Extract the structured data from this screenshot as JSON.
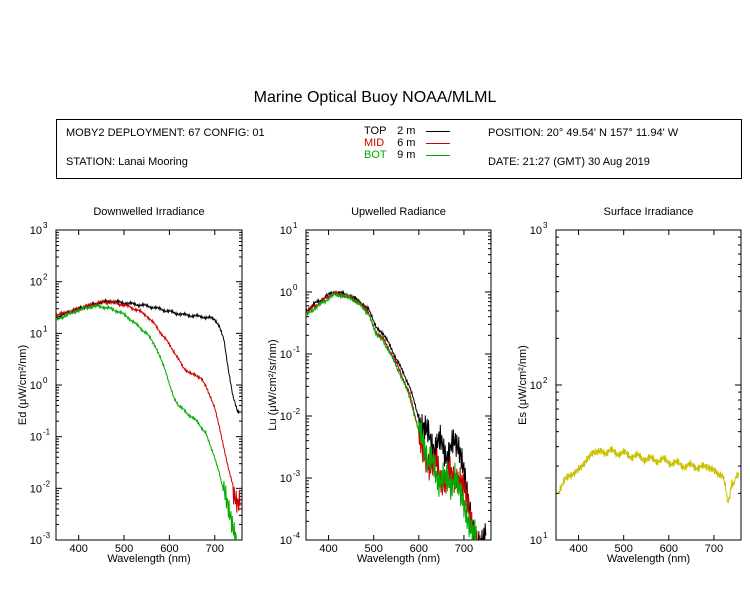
{
  "title": "Marine Optical Buoy NOAA/MLML",
  "info": {
    "deployment": "MOBY2 DEPLOYMENT: 67 CONFIG: 01",
    "station": "STATION: Lanai Mooring",
    "position": "POSITION: 20° 49.54' N   157° 11.94' W",
    "date": "DATE: 21:27 (GMT) 30 Aug 2019"
  },
  "depths": [
    {
      "name": "TOP",
      "value": "2",
      "unit": "m",
      "color": "#000000"
    },
    {
      "name": "MID",
      "value": "6",
      "unit": "m",
      "color": "#cc0000"
    },
    {
      "name": "BOT",
      "value": "9",
      "unit": "m",
      "color": "#00aa00"
    }
  ],
  "chart_data": [
    {
      "type": "line",
      "title": "Downwelled Irradiance",
      "xlabel": "Wavelength (nm)",
      "ylabel": "Ed  (μW/cm²/nm)",
      "xlim": [
        350,
        760
      ],
      "ylim": [
        0.001,
        1000
      ],
      "yscale": "log",
      "x_ticks": [
        400,
        500,
        600,
        700
      ],
      "y_ticks": [
        {
          "value": 0.001,
          "base": "10",
          "exp": "-3"
        },
        {
          "value": 0.01,
          "base": "10",
          "exp": "-2"
        },
        {
          "value": 0.1,
          "base": "10",
          "exp": "-1"
        },
        {
          "value": 1,
          "base": "10",
          "exp": "0"
        },
        {
          "value": 10,
          "base": "10",
          "exp": "1"
        },
        {
          "value": 100,
          "base": "10",
          "exp": "2"
        },
        {
          "value": 1000,
          "base": "10",
          "exp": "3"
        }
      ],
      "series": [
        {
          "name": "TOP",
          "color": "#000000",
          "x": [
            350,
            370,
            390,
            410,
            430,
            450,
            470,
            490,
            510,
            530,
            550,
            570,
            590,
            610,
            630,
            650,
            670,
            690,
            700,
            710,
            720,
            730,
            740,
            750,
            757
          ],
          "y": [
            20,
            24,
            28,
            32,
            36,
            40,
            42,
            40,
            38,
            36,
            34,
            31,
            28,
            25,
            23,
            22,
            21,
            20,
            18,
            14,
            8,
            2,
            0.6,
            0.3,
            0.28
          ]
        },
        {
          "name": "MID",
          "color": "#cc0000",
          "x": [
            350,
            370,
            390,
            410,
            430,
            450,
            470,
            490,
            510,
            530,
            550,
            570,
            590,
            610,
            630,
            650,
            670,
            680,
            690,
            700,
            710,
            720,
            730,
            740,
            750,
            757
          ],
          "y": [
            22,
            25,
            28,
            32,
            36,
            40,
            40,
            37,
            33,
            28,
            22,
            14,
            8,
            4.5,
            2.2,
            1.6,
            1.4,
            1.0,
            0.6,
            0.35,
            0.15,
            0.06,
            0.025,
            0.012,
            0.006,
            0.005
          ]
        },
        {
          "name": "BOT",
          "color": "#00aa00",
          "x": [
            350,
            370,
            390,
            410,
            430,
            450,
            470,
            490,
            510,
            530,
            550,
            570,
            580,
            590,
            600,
            610,
            620,
            640,
            660,
            680,
            690,
            700,
            710,
            720,
            730,
            740,
            750
          ],
          "y": [
            18,
            22,
            26,
            30,
            33,
            33,
            30,
            26,
            20,
            14,
            10,
            5.5,
            3.5,
            2.0,
            1.0,
            0.55,
            0.4,
            0.28,
            0.2,
            0.12,
            0.07,
            0.04,
            0.02,
            0.008,
            0.003,
            0.0015,
            0.001
          ]
        }
      ]
    },
    {
      "type": "line",
      "title": "Upwelled Radiance",
      "xlabel": "Wavelength (nm)",
      "ylabel": "Lu  (μW/cm²/sr/nm)",
      "xlim": [
        350,
        760
      ],
      "ylim": [
        0.0001,
        10
      ],
      "yscale": "log",
      "x_ticks": [
        400,
        500,
        600,
        700
      ],
      "y_ticks": [
        {
          "value": 0.0001,
          "base": "10",
          "exp": "-4"
        },
        {
          "value": 0.001,
          "base": "10",
          "exp": "-3"
        },
        {
          "value": 0.01,
          "base": "10",
          "exp": "-2"
        },
        {
          "value": 0.1,
          "base": "10",
          "exp": "-1"
        },
        {
          "value": 1,
          "base": "10",
          "exp": "0"
        },
        {
          "value": 10,
          "base": "10",
          "exp": "1"
        }
      ],
      "series": [
        {
          "name": "TOP",
          "color": "#000000",
          "x": [
            350,
            370,
            390,
            410,
            430,
            450,
            470,
            490,
            505,
            520,
            540,
            560,
            580,
            600,
            610,
            620,
            640,
            660,
            680,
            690,
            700,
            710,
            720,
            730,
            740,
            750
          ],
          "y": [
            0.5,
            0.65,
            0.8,
            1.0,
            0.95,
            0.85,
            0.7,
            0.5,
            0.28,
            0.22,
            0.12,
            0.06,
            0.03,
            0.009,
            0.006,
            0.0045,
            0.0035,
            0.0028,
            0.003,
            0.002,
            0.0012,
            0.0005,
            0.0002,
            0.0001,
            8e-05,
            0.0001
          ]
        },
        {
          "name": "MID",
          "color": "#cc0000",
          "x": [
            350,
            370,
            390,
            410,
            430,
            450,
            470,
            490,
            505,
            520,
            540,
            560,
            580,
            600,
            610,
            620,
            640,
            660,
            680,
            690,
            700,
            710,
            720,
            730,
            740
          ],
          "y": [
            0.45,
            0.6,
            0.75,
            0.95,
            0.9,
            0.82,
            0.65,
            0.45,
            0.22,
            0.18,
            0.1,
            0.05,
            0.022,
            0.006,
            0.0035,
            0.0022,
            0.0014,
            0.0009,
            0.0012,
            0.001,
            0.0006,
            0.00025,
            0.00012,
            0.0001,
            0.0001
          ]
        },
        {
          "name": "BOT",
          "color": "#00aa00",
          "x": [
            350,
            370,
            390,
            410,
            430,
            450,
            470,
            490,
            505,
            520,
            540,
            560,
            580,
            600,
            610,
            620,
            640,
            660,
            680,
            690,
            700,
            710,
            720,
            730
          ],
          "y": [
            0.42,
            0.55,
            0.7,
            0.9,
            0.88,
            0.8,
            0.62,
            0.43,
            0.2,
            0.17,
            0.09,
            0.045,
            0.02,
            0.0055,
            0.003,
            0.0019,
            0.0012,
            0.0008,
            0.0011,
            0.0009,
            0.0005,
            0.0002,
            0.0001,
            0.0001
          ]
        }
      ]
    },
    {
      "type": "line",
      "title": "Surface Irradiance",
      "xlabel": "Wavelength (nm)",
      "ylabel": "Es  (μW/cm²/nm)",
      "xlim": [
        350,
        760
      ],
      "ylim": [
        10,
        1000
      ],
      "yscale": "log",
      "x_ticks": [
        400,
        500,
        600,
        700
      ],
      "y_ticks": [
        {
          "value": 10,
          "base": "10",
          "exp": "1"
        },
        {
          "value": 100,
          "base": "10",
          "exp": "2"
        },
        {
          "value": 1000,
          "base": "10",
          "exp": "3"
        }
      ],
      "series": [
        {
          "name": "",
          "color": "#c8c000",
          "x": [
            355,
            370,
            385,
            400,
            410,
            420,
            430,
            440,
            450,
            460,
            480,
            500,
            520,
            540,
            560,
            580,
            600,
            620,
            640,
            660,
            680,
            690,
            700,
            710,
            720,
            725,
            730,
            735,
            740,
            745,
            750,
            757
          ],
          "y": [
            20,
            24,
            26,
            30,
            31,
            33,
            35,
            36,
            38,
            37,
            37,
            36,
            35,
            34,
            33,
            33,
            32,
            31,
            30,
            30,
            29,
            28,
            28,
            27,
            27,
            22,
            18,
            19,
            23,
            24,
            25,
            26
          ]
        }
      ]
    }
  ]
}
